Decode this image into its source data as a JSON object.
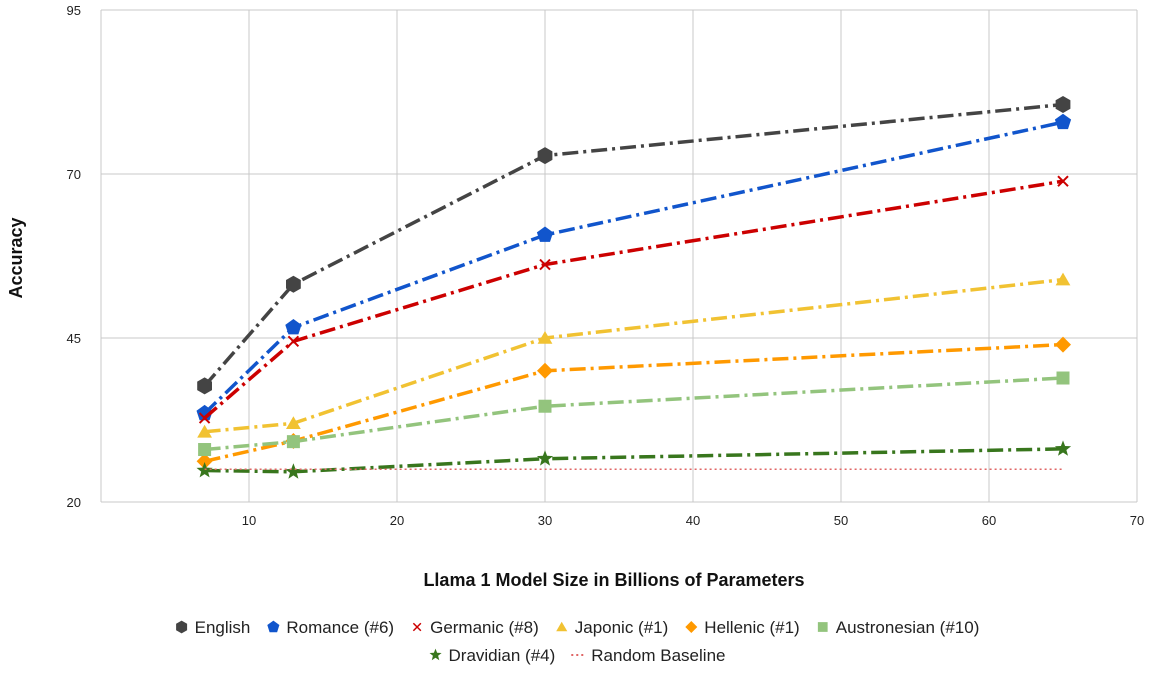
{
  "chart_data": {
    "type": "line",
    "title": "",
    "xlabel": "Llama 1 Model Size in Billions of Parameters",
    "ylabel": "Accuracy",
    "xlim": [
      0,
      70
    ],
    "ylim": [
      20,
      95
    ],
    "xticks": [
      10,
      20,
      30,
      40,
      50,
      60,
      70
    ],
    "yticks": [
      20,
      45,
      70,
      95
    ],
    "grid": true,
    "legend_position": "bottom",
    "x": [
      7,
      13,
      30,
      65
    ],
    "series": [
      {
        "name": "English",
        "values": [
          37.7,
          53.2,
          72.8,
          80.6
        ],
        "color": "#444444",
        "marker": "hexagon",
        "dash": "dashdot"
      },
      {
        "name": "Romance (#6)",
        "values": [
          33.5,
          46.6,
          60.7,
          77.9
        ],
        "color": "#1155cc",
        "marker": "pentagon",
        "dash": "dashdot"
      },
      {
        "name": "Germanic (#8)",
        "values": [
          32.8,
          44.5,
          56.2,
          68.9
        ],
        "color": "#cc0000",
        "marker": "x",
        "dash": "dashdot"
      },
      {
        "name": "Japonic (#1)",
        "values": [
          30.7,
          32.0,
          45.0,
          53.9
        ],
        "color": "#f1c232",
        "marker": "triangle",
        "dash": "dashdot"
      },
      {
        "name": "Hellenic (#1)",
        "values": [
          26.2,
          29.3,
          40.0,
          44.0
        ],
        "color": "#ff9900",
        "marker": "diamond",
        "dash": "dashdot"
      },
      {
        "name": "Austronesian (#10)",
        "values": [
          28.0,
          29.2,
          34.6,
          38.9
        ],
        "color": "#93c47d",
        "marker": "square",
        "dash": "dashdot"
      },
      {
        "name": "Dravidian (#4)",
        "values": [
          24.8,
          24.6,
          26.6,
          28.1
        ],
        "color": "#38761d",
        "marker": "star",
        "dash": "dashdot"
      },
      {
        "name": "Random Baseline",
        "values": [
          25.0,
          25.0,
          25.0,
          25.0
        ],
        "color": "#e06666",
        "marker": "none",
        "dash": "dotted"
      }
    ]
  }
}
